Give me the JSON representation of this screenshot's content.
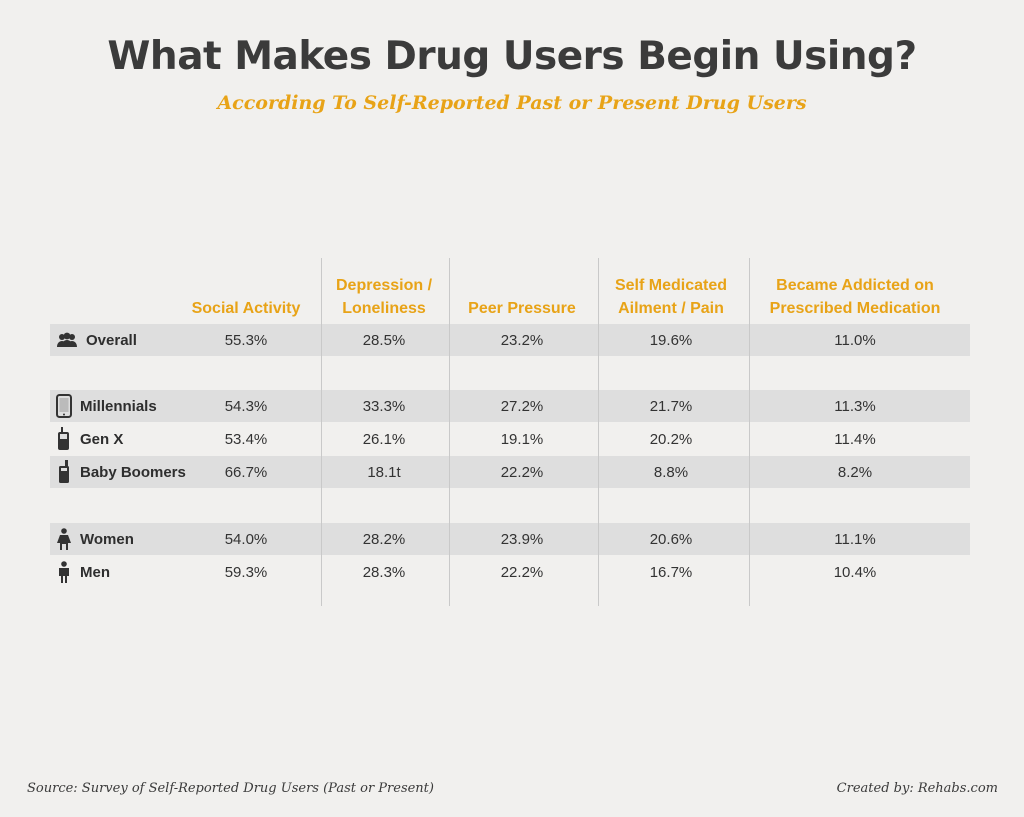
{
  "title": "What Makes Drug Users Begin Using?",
  "subtitle": "According To Self-Reported Past or Present Drug Users",
  "chart_data": {
    "type": "table",
    "columns": [
      "Social Activity",
      "Depression / Loneliness",
      "Peer Pressure",
      "Self Medicated Ailment / Pain",
      "Became Addicted on Prescribed Medication"
    ],
    "rows": [
      {
        "label": "Overall",
        "icon": "group-icon",
        "shaded": true,
        "values": [
          "55.3%",
          "28.5%",
          "23.2%",
          "19.6%",
          "11.0%"
        ]
      },
      {
        "label": "Millennials",
        "icon": "smartphone-icon",
        "shaded": true,
        "values": [
          "54.3%",
          "33.3%",
          "27.2%",
          "21.7%",
          "11.3%"
        ]
      },
      {
        "label": "Gen X",
        "icon": "flip-phone-icon",
        "shaded": false,
        "values": [
          "53.4%",
          "26.1%",
          "19.1%",
          "20.2%",
          "11.4%"
        ]
      },
      {
        "label": "Baby Boomers",
        "icon": "brick-phone-icon",
        "shaded": true,
        "values": [
          "66.7%",
          "18.1t",
          "22.2%",
          "8.8%",
          "8.2%"
        ]
      },
      {
        "label": "Women",
        "icon": "woman-icon",
        "shaded": true,
        "values": [
          "54.0%",
          "28.2%",
          "23.9%",
          "20.6%",
          "11.1%"
        ]
      },
      {
        "label": "Men",
        "icon": "man-icon",
        "shaded": false,
        "values": [
          "59.3%",
          "28.3%",
          "22.2%",
          "16.7%",
          "10.4%"
        ]
      }
    ]
  },
  "colors": {
    "accent": "#e8a317",
    "band": "#dedede",
    "text": "#3a3a3a"
  },
  "footer": {
    "source": "Source: Survey of Self-Reported Drug Users (Past or Present)",
    "credit": "Created by: Rehabs.com"
  }
}
